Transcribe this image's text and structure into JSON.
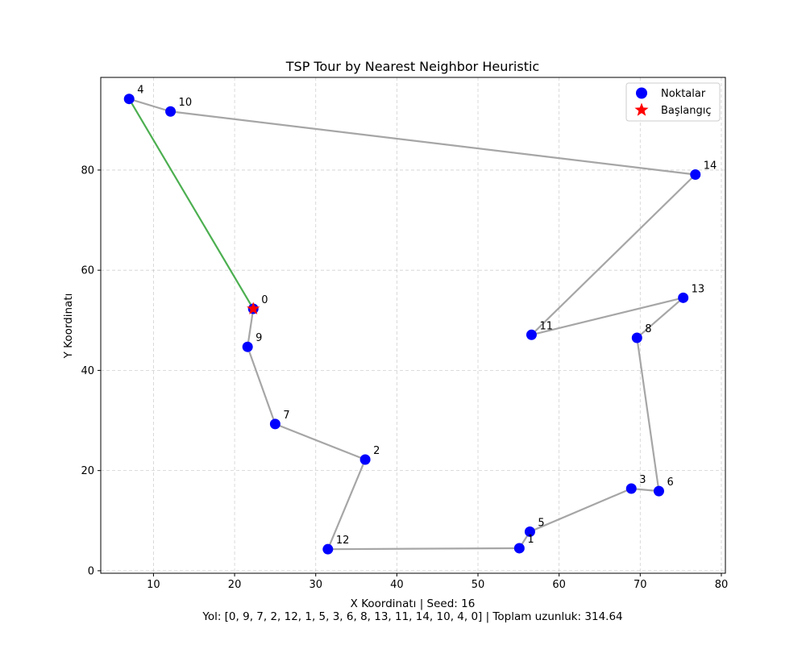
{
  "chart_data": {
    "type": "scatter",
    "title": "TSP Tour by Nearest Neighbor Heuristic",
    "xlabel": "X Koordinatı | Seed: 16",
    "ylabel": "Y Koordinatı",
    "footer": "Yol: [0, 9, 7, 2, 12, 1, 5, 3, 6, 8, 13, 11, 14, 10, 4, 0] | Toplam uzunluk: 314.64",
    "xlim": [
      3.5,
      80.5
    ],
    "ylim": [
      -0.5,
      98.5
    ],
    "xticks": [
      10,
      20,
      30,
      40,
      50,
      60,
      70,
      80
    ],
    "yticks": [
      0,
      20,
      40,
      60,
      80
    ],
    "grid": true,
    "legend_position": "top-right",
    "legend": [
      {
        "label": "Noktalar",
        "marker": "circle",
        "color": "#0000ff"
      },
      {
        "label": "Başlangıç",
        "marker": "star",
        "color": "#ff0000"
      }
    ],
    "points": [
      {
        "id": "0",
        "x": 22.3,
        "y": 52.3
      },
      {
        "id": "1",
        "x": 55.1,
        "y": 4.5
      },
      {
        "id": "2",
        "x": 36.1,
        "y": 22.2
      },
      {
        "id": "3",
        "x": 68.9,
        "y": 16.4
      },
      {
        "id": "4",
        "x": 7.0,
        "y": 94.2
      },
      {
        "id": "5",
        "x": 56.4,
        "y": 7.8
      },
      {
        "id": "6",
        "x": 72.3,
        "y": 15.9
      },
      {
        "id": "7",
        "x": 25.0,
        "y": 29.3
      },
      {
        "id": "8",
        "x": 69.6,
        "y": 46.5
      },
      {
        "id": "9",
        "x": 21.6,
        "y": 44.7
      },
      {
        "id": "10",
        "x": 12.1,
        "y": 91.7
      },
      {
        "id": "11",
        "x": 56.6,
        "y": 47.1
      },
      {
        "id": "12",
        "x": 31.5,
        "y": 4.3
      },
      {
        "id": "13",
        "x": 75.3,
        "y": 54.5
      },
      {
        "id": "14",
        "x": 76.8,
        "y": 79.1
      }
    ],
    "tour": [
      0,
      9,
      7,
      2,
      12,
      1,
      5,
      3,
      6,
      8,
      13,
      11,
      14,
      10,
      4,
      0
    ],
    "start": 0,
    "tour_color": "#a6a6a6",
    "closing_edge_color": "#4caf50",
    "point_color": "#0000ff",
    "start_color": "#ff0000"
  }
}
